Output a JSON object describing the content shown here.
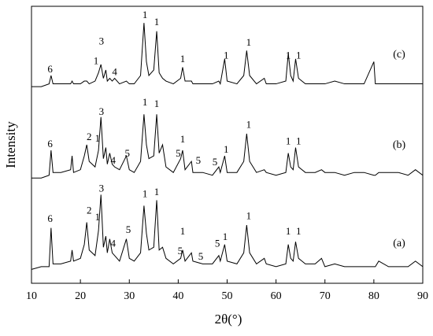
{
  "chart_data": {
    "type": "line",
    "xlabel": "2θ(°)",
    "ylabel": "Intensity",
    "xlim": [
      10,
      90
    ],
    "xticks": [
      10,
      20,
      30,
      40,
      50,
      60,
      70,
      80,
      90
    ],
    "ylim": [
      0,
      100
    ],
    "x": [
      10,
      12,
      13.6,
      14,
      14.4,
      16,
      18,
      18.3,
      18.6,
      20,
      20.8,
      21.3,
      21.8,
      23,
      23.7,
      24.2,
      24.7,
      25.2,
      25.5,
      26,
      26.5,
      27,
      28,
      29.4,
      30,
      31,
      32.3,
      33,
      33.5,
      34,
      35,
      35.6,
      36.1,
      36.8,
      37.5,
      39,
      40.5,
      40.9,
      41.4,
      42.7,
      43,
      45,
      47,
      48.3,
      48.6,
      49.5,
      50,
      52,
      53.4,
      54,
      54.6,
      56,
      57.6,
      58,
      60,
      62,
      62.5,
      63,
      63.5,
      64,
      64.6,
      66,
      68,
      69.3,
      70,
      72,
      74,
      76,
      78,
      80,
      80.3,
      81,
      83,
      85,
      87,
      88.5,
      90
    ],
    "series": [
      {
        "name": "(a)",
        "color": "#000000",
        "values": [
          5,
          6,
          6,
          20,
          7,
          7,
          8,
          12,
          8,
          9,
          14,
          22,
          12,
          10,
          19,
          32,
          13,
          17,
          11,
          16,
          11,
          10,
          8,
          16,
          9,
          8,
          11,
          28,
          18,
          12,
          13,
          30,
          12,
          13,
          9,
          7,
          9,
          12,
          8,
          11,
          8,
          7,
          7,
          10,
          8,
          14,
          8,
          7,
          11,
          21,
          11,
          7,
          9,
          7,
          6,
          7,
          14,
          9,
          8,
          15,
          9,
          7,
          7,
          9,
          6,
          7,
          6,
          6,
          6,
          6,
          6,
          8,
          6,
          6,
          6,
          8,
          6
        ]
      },
      {
        "name": "(b)",
        "color": "#000000",
        "values": [
          38,
          38,
          39,
          48,
          40,
          40,
          41,
          46,
          40,
          41,
          46,
          50,
          44,
          42,
          48,
          60,
          45,
          49,
          43,
          47,
          43,
          42,
          41,
          46,
          41,
          40,
          44,
          61,
          50,
          45,
          46,
          61,
          47,
          50,
          42,
          40,
          45,
          48,
          41,
          44,
          40,
          40,
          39,
          42,
          40,
          46,
          40,
          40,
          44,
          54,
          44,
          40,
          41,
          40,
          39,
          40,
          47,
          42,
          41,
          49,
          42,
          40,
          40,
          41,
          40,
          40,
          39,
          40,
          40,
          39,
          39,
          40,
          40,
          40,
          39,
          41,
          39
        ]
      },
      {
        "name": "(c)",
        "color": "#000000",
        "values": [
          71,
          71,
          72,
          75,
          72,
          72,
          72,
          73,
          72,
          72,
          73,
          73,
          72,
          73,
          76,
          79,
          74,
          77,
          73,
          74,
          73,
          74,
          72,
          73,
          72,
          72,
          75,
          94,
          80,
          75,
          77,
          91,
          76,
          74,
          73,
          72,
          74,
          78,
          73,
          73,
          72,
          72,
          72,
          73,
          72,
          81,
          73,
          72,
          75,
          84,
          75,
          72,
          74,
          72,
          72,
          73,
          83,
          75,
          73,
          81,
          74,
          72,
          72,
          72,
          72,
          73,
          72,
          72,
          72,
          80,
          72,
          72,
          72,
          72,
          72,
          72,
          72
        ]
      }
    ],
    "annotations": [
      {
        "text": "6",
        "x": 13.8,
        "y": 77
      },
      {
        "text": "1",
        "x": 23.2,
        "y": 80
      },
      {
        "text": "3",
        "x": 24.3,
        "y": 87
      },
      {
        "text": "4",
        "x": 27,
        "y": 76
      },
      {
        "text": "1",
        "x": 33.2,
        "y": 96.6
      },
      {
        "text": "1",
        "x": 35.6,
        "y": 94
      },
      {
        "text": "1",
        "x": 40.9,
        "y": 80.7
      },
      {
        "text": "1",
        "x": 49.8,
        "y": 82
      },
      {
        "text": "1",
        "x": 54.4,
        "y": 86.6
      },
      {
        "text": "1",
        "x": 62.5,
        "y": 82
      },
      {
        "text": "1",
        "x": 64.6,
        "y": 82
      },
      {
        "text": "6",
        "x": 13.8,
        "y": 50
      },
      {
        "text": "2",
        "x": 21.8,
        "y": 52.6
      },
      {
        "text": "1",
        "x": 23.5,
        "y": 52
      },
      {
        "text": "3",
        "x": 24.3,
        "y": 61.6
      },
      {
        "text": "4",
        "x": 26.7,
        "y": 44
      },
      {
        "text": "5",
        "x": 29.6,
        "y": 46.6
      },
      {
        "text": "1",
        "x": 33.2,
        "y": 65
      },
      {
        "text": "1",
        "x": 35.6,
        "y": 64.5
      },
      {
        "text": "5",
        "x": 40,
        "y": 46.6
      },
      {
        "text": "1",
        "x": 40.9,
        "y": 51.7
      },
      {
        "text": "5",
        "x": 44.1,
        "y": 44
      },
      {
        "text": "5",
        "x": 47.5,
        "y": 43.5
      },
      {
        "text": "1",
        "x": 49.8,
        "y": 48
      },
      {
        "text": "1",
        "x": 54.4,
        "y": 57
      },
      {
        "text": "1",
        "x": 62.5,
        "y": 51
      },
      {
        "text": "1",
        "x": 64.6,
        "y": 51
      },
      {
        "text": "6",
        "x": 13.8,
        "y": 23
      },
      {
        "text": "2",
        "x": 21.8,
        "y": 26
      },
      {
        "text": "1",
        "x": 23.5,
        "y": 23.6
      },
      {
        "text": "3",
        "x": 24.3,
        "y": 34
      },
      {
        "text": "4",
        "x": 26.7,
        "y": 14
      },
      {
        "text": "5",
        "x": 29.8,
        "y": 19
      },
      {
        "text": "1",
        "x": 33.2,
        "y": 32
      },
      {
        "text": "1",
        "x": 35.6,
        "y": 32.7
      },
      {
        "text": "5",
        "x": 40.4,
        "y": 11.4
      },
      {
        "text": "1",
        "x": 40.9,
        "y": 18.5
      },
      {
        "text": "5",
        "x": 44.6,
        "y": 9.4
      },
      {
        "text": "5",
        "x": 48,
        "y": 14
      },
      {
        "text": "1",
        "x": 49.6,
        "y": 16.5
      },
      {
        "text": "1",
        "x": 54.4,
        "y": 24
      },
      {
        "text": "1",
        "x": 62.5,
        "y": 18.5
      },
      {
        "text": "1",
        "x": 64.6,
        "y": 18.5
      }
    ]
  }
}
